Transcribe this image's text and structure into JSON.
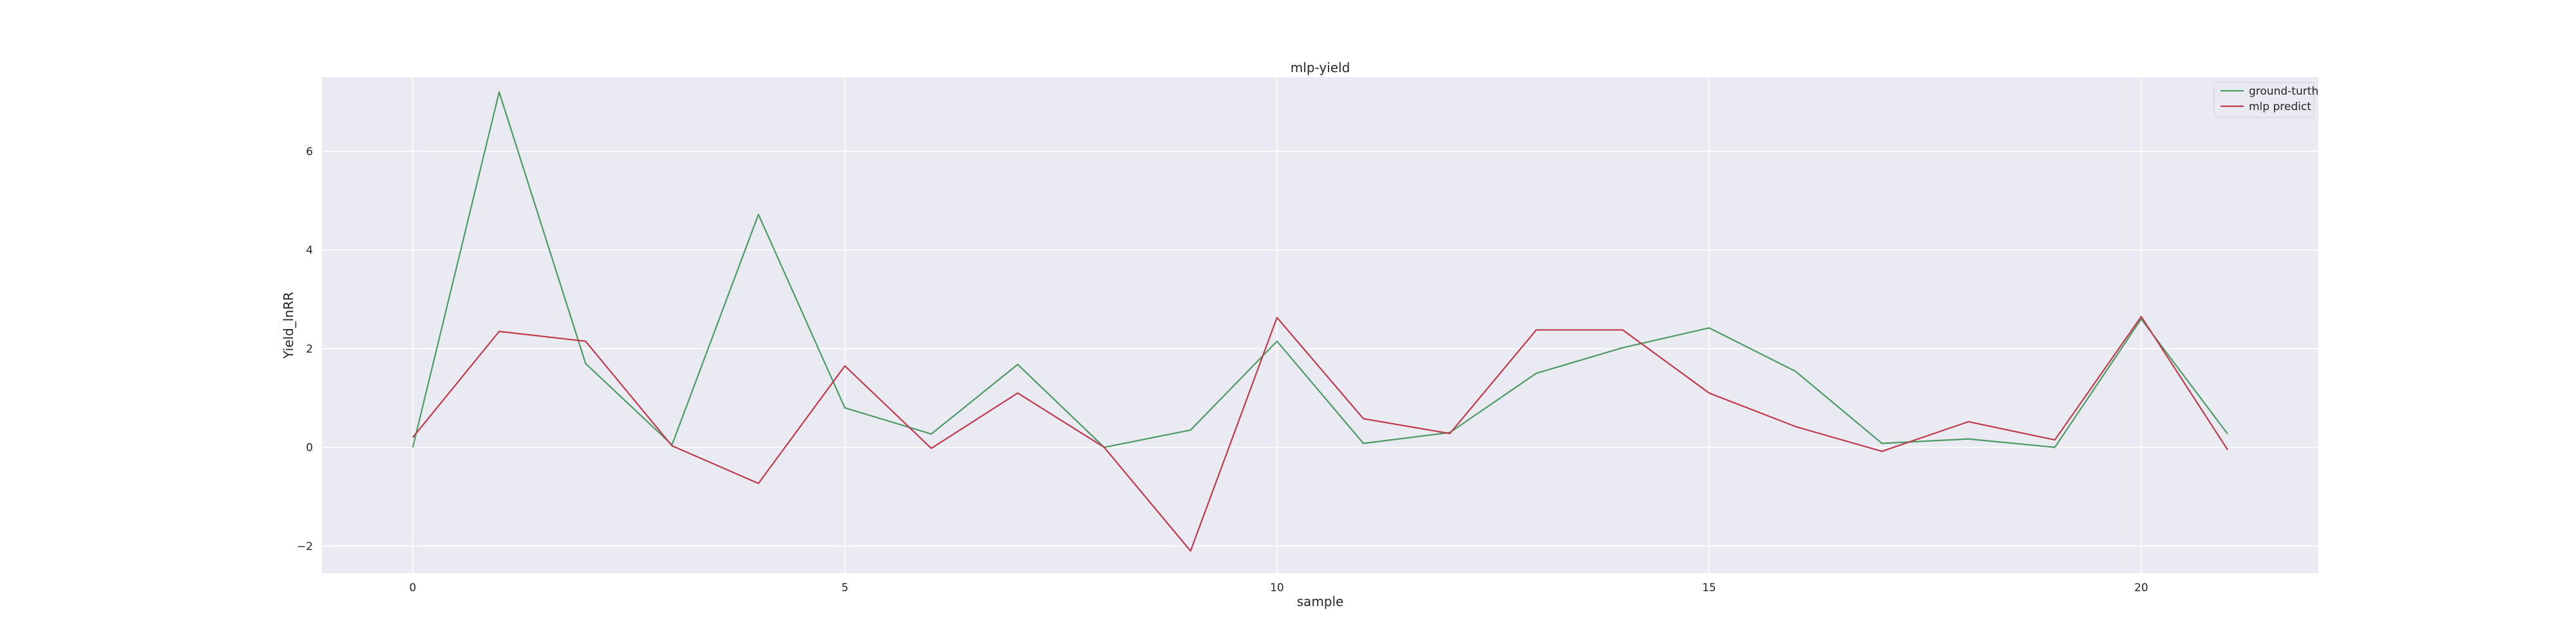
{
  "chart_data": {
    "type": "line",
    "title": "mlp-yield",
    "xlabel": "sample",
    "ylabel": "Yield_lnRR",
    "xlim": [
      -1.05,
      22.05
    ],
    "ylim": [
      -2.55,
      7.5
    ],
    "xticks": [
      0,
      5,
      10,
      15,
      20
    ],
    "yticks": [
      -2,
      0,
      2,
      4,
      6
    ],
    "xtick_labels": [
      "0",
      "5",
      "10",
      "15",
      "20"
    ],
    "ytick_labels": [
      "−2",
      "0",
      "2",
      "4",
      "6"
    ],
    "grid": true,
    "legend_position": "top-right",
    "x": [
      0,
      1,
      2,
      3,
      4,
      5,
      6,
      7,
      8,
      9,
      10,
      11,
      12,
      13,
      14,
      15,
      16,
      17,
      18,
      19,
      20,
      21
    ],
    "series": [
      {
        "name": "ground-turth",
        "color": "#4c9a64",
        "values": [
          0.0,
          7.2,
          1.7,
          0.05,
          4.72,
          0.8,
          0.27,
          1.68,
          0.0,
          0.35,
          2.15,
          0.08,
          0.3,
          1.5,
          2.02,
          2.42,
          1.54,
          0.08,
          0.17,
          0.0,
          2.6,
          0.27
        ]
      },
      {
        "name": "mlp predict",
        "color": "#c0394b",
        "values": [
          0.2,
          2.35,
          2.15,
          0.03,
          -0.73,
          1.65,
          -0.02,
          1.1,
          0.0,
          -2.1,
          2.63,
          0.58,
          0.28,
          2.38,
          2.38,
          1.1,
          0.42,
          -0.08,
          0.52,
          0.15,
          2.65,
          -0.05
        ]
      }
    ]
  }
}
